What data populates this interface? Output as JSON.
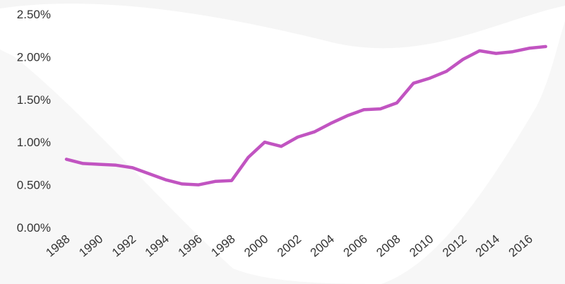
{
  "chart_data": {
    "type": "line",
    "title": "",
    "xlabel": "",
    "ylabel": "",
    "xlim": [
      1988,
      2017
    ],
    "ylim": [
      0,
      0.025
    ],
    "grid": false,
    "legend": "none",
    "y_ticks": [
      0,
      0.005,
      0.01,
      0.015,
      0.02,
      0.025
    ],
    "y_tick_labels": [
      "0.00%",
      "0.50%",
      "1.00%",
      "1.50%",
      "2.00%",
      "2.50%"
    ],
    "x_ticks": [
      1988,
      1990,
      1992,
      1994,
      1996,
      1998,
      2000,
      2002,
      2004,
      2006,
      2008,
      2010,
      2012,
      2014,
      2016
    ],
    "x_tick_labels": [
      "1988",
      "1990",
      "1992",
      "1994",
      "1996",
      "1998",
      "2000",
      "2002",
      "2004",
      "2006",
      "2008",
      "2010",
      "2012",
      "2014",
      "2016"
    ],
    "line_color": "#c154c1",
    "series": [
      {
        "x": [
          1988,
          1989,
          1990,
          1991,
          1992,
          1993,
          1994,
          1995,
          1996,
          1997,
          1998,
          1999,
          2000,
          2001,
          2002,
          2003,
          2004,
          2005,
          2006,
          2007,
          2008,
          2009,
          2010,
          2011,
          2012,
          2013,
          2014,
          2015,
          2016,
          2017
        ],
        "values": [
          0.008,
          0.0075,
          0.0074,
          0.0073,
          0.007,
          0.0063,
          0.0056,
          0.0051,
          0.005,
          0.0054,
          0.0055,
          0.0082,
          0.01,
          0.0095,
          0.0106,
          0.0112,
          0.0122,
          0.0131,
          0.0138,
          0.0139,
          0.0146,
          0.0169,
          0.0175,
          0.0183,
          0.0197,
          0.0207,
          0.0204,
          0.0206,
          0.021,
          0.0212
        ]
      }
    ]
  }
}
